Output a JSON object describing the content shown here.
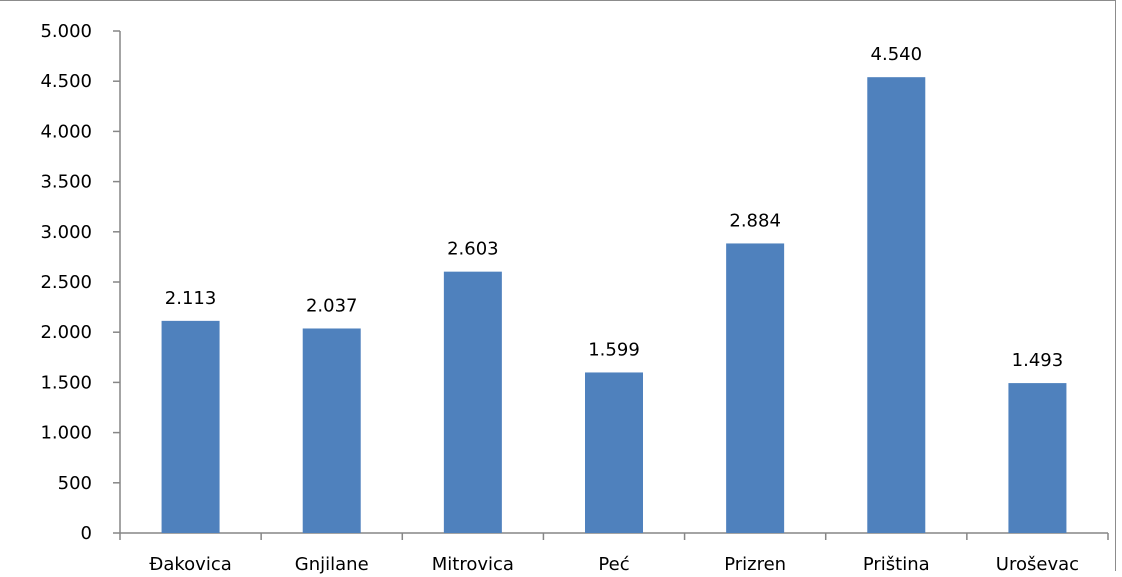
{
  "chart_data": {
    "type": "bar",
    "title": "",
    "xlabel": "",
    "ylabel": "",
    "categories": [
      "Đakovica",
      "Gnjilane",
      "Mitrovica",
      "Peć",
      "Prizren",
      "Priština",
      "Uroševac"
    ],
    "values": [
      2113,
      2037,
      2603,
      1599,
      2884,
      4540,
      1493
    ],
    "data_labels": [
      "2.113",
      "2.037",
      "2.603",
      "1.599",
      "2.884",
      "4.540",
      "1.493"
    ],
    "ylim": [
      0,
      5000
    ],
    "y_ticks": [
      0,
      500,
      1000,
      1500,
      2000,
      2500,
      3000,
      3500,
      4000,
      4500,
      5000
    ],
    "y_tick_labels": [
      "0",
      "500",
      "1.000",
      "1.500",
      "2.000",
      "2.500",
      "3.000",
      "3.500",
      "4.000",
      "4.500",
      "5.000"
    ],
    "grid": false,
    "legend": "none",
    "bar_color": "#4f81bd",
    "axis_color": "#868686"
  }
}
